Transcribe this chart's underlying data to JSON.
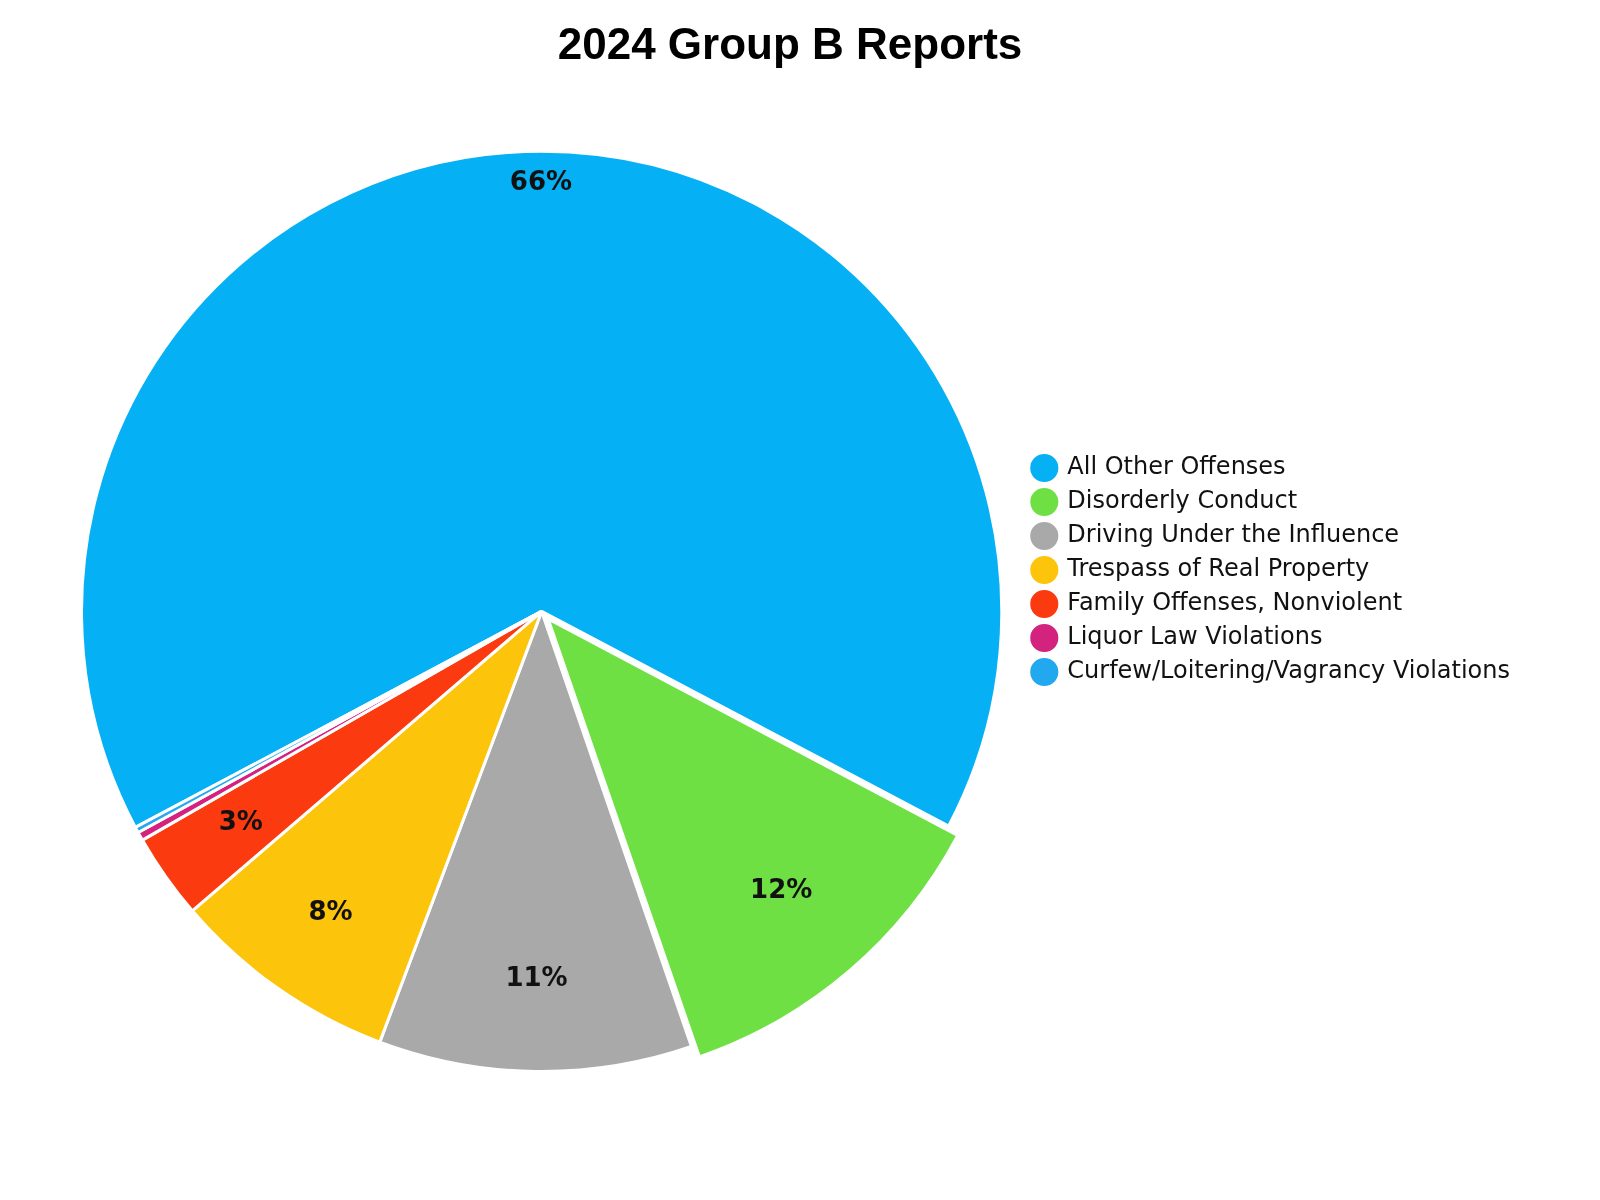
{
  "chart_data": {
    "type": "pie",
    "title": "2024 Group B Reports",
    "categories": [
      "All Other Offenses",
      "Disorderly Conduct",
      "Driving Under the Influence",
      "Trespass of Real Property",
      "Family Offenses, Nonviolent",
      "Liquor Law Violations",
      "Curfew/Loitering/Vagrancy Violations"
    ],
    "values": [
      65.5,
      12,
      11,
      8,
      3,
      0.3,
      0.2
    ],
    "value_labels": [
      "66%",
      "12%",
      "11%",
      "8%",
      "3%",
      null,
      null
    ],
    "colors": [
      "#06b0f5",
      "#6ee043",
      "#a9a9a9",
      "#fcc40a",
      "#fb3a10",
      "#d3237e",
      "#22a8ef"
    ],
    "legend": "right"
  }
}
